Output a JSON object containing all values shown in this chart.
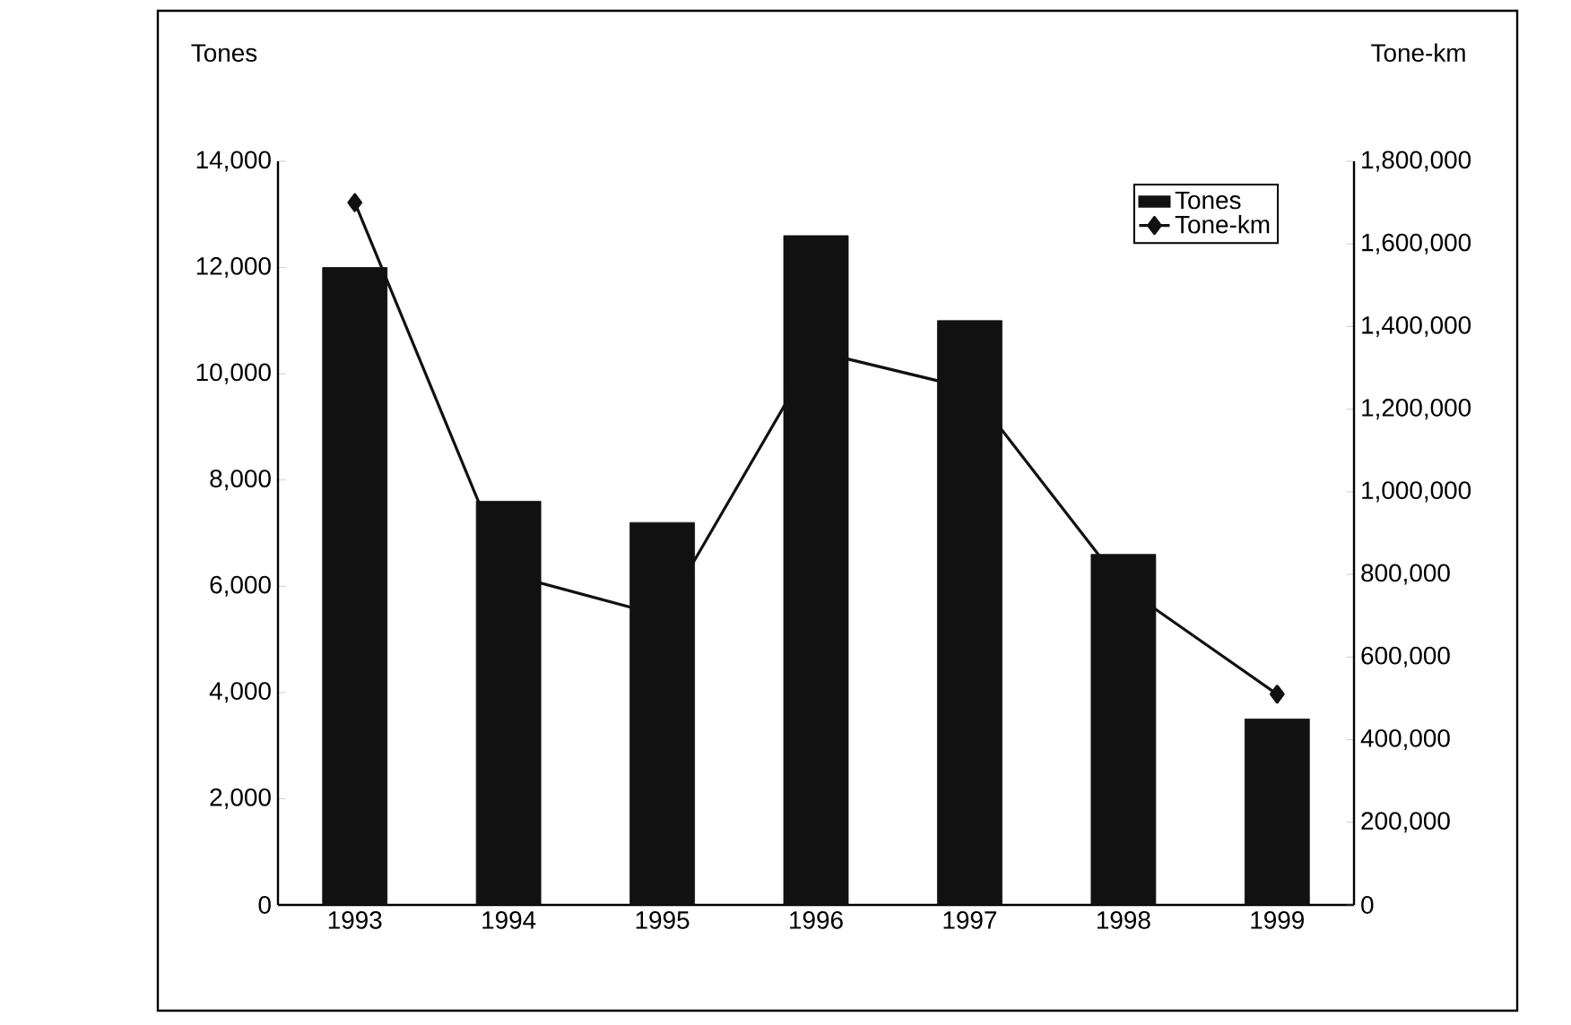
{
  "chart_data": {
    "type": "bar",
    "categories": [
      "1993",
      "1994",
      "1995",
      "1996",
      "1997",
      "1998",
      "1999"
    ],
    "series": [
      {
        "name": "Tones",
        "color": "#111111",
        "values": [
          12000,
          7600,
          7200,
          12600,
          11000,
          6600,
          3500
        ]
      },
      {
        "name": "Tone-km",
        "type": "line",
        "axis": "y2",
        "color": "#111111",
        "marker": "diamond",
        "line_style": "solid",
        "values": [
          1700000,
          800000,
          700000,
          1340000,
          1250000,
          770000,
          510000
        ]
      }
    ],
    "ylabel": "Tones",
    "y2label": "Tone-km",
    "ylim": [
      0,
      14000
    ],
    "yticks": [
      0,
      {
        "value": 2000,
        "label": "2,000"
      },
      {
        "value": 4000,
        "label": "4,000"
      },
      {
        "value": 6000,
        "label": "6,000"
      },
      {
        "value": 8000,
        "label": "8,000"
      },
      {
        "value": 10000,
        "label": "10,000"
      },
      {
        "value": 12000,
        "label": "12,000"
      },
      {
        "value": 14000,
        "label": "14,000"
      }
    ],
    "y2lim": [
      0,
      1800000
    ],
    "y2ticks": [
      0,
      {
        "value": 200000,
        "label": "200,000"
      },
      {
        "value": 400000,
        "label": "400,000"
      },
      {
        "value": 600000,
        "label": "600,000"
      },
      {
        "value": 800000,
        "label": "800,000"
      },
      {
        "value": 1000000,
        "label": "1,000,000"
      },
      {
        "value": 1200000,
        "label": "1,200,000"
      },
      {
        "value": 1400000,
        "label": "1,400,000"
      },
      {
        "value": 1600000,
        "label": "1,600,000"
      },
      {
        "value": 1800000,
        "label": "1,800,000"
      }
    ],
    "legend": "top right"
  }
}
